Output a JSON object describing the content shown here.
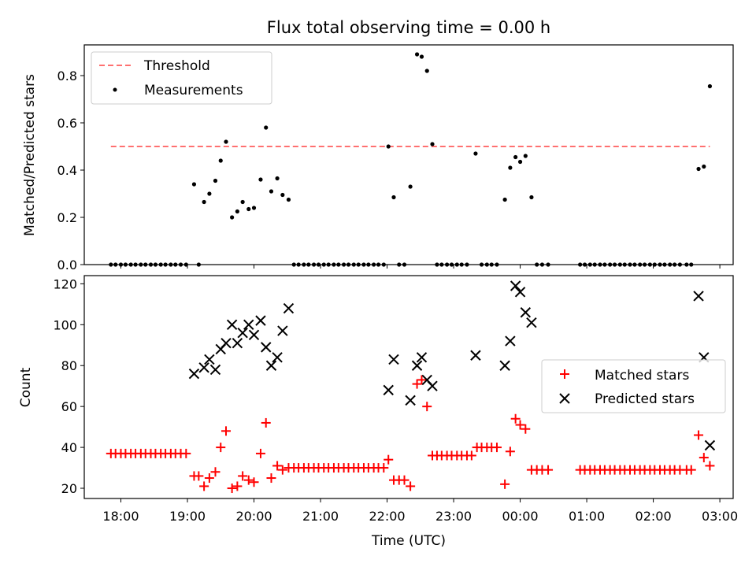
{
  "chart_data": [
    {
      "type": "scatter",
      "title": "Flux total observing time = 0.00 h",
      "ylabel": "Matched/Predicted stars",
      "xlabel": "",
      "x_unit": "hours UTC from 18:00",
      "xlim": [
        -0.55,
        9.2
      ],
      "ylim": [
        0,
        0.93
      ],
      "yticks": [
        0.0,
        0.2,
        0.4,
        0.6,
        0.8
      ],
      "ytick_labels": [
        "0.0",
        "0.2",
        "0.4",
        "0.6",
        "0.8"
      ],
      "xticks": [
        0,
        1,
        2,
        3,
        4,
        5,
        6,
        7,
        8,
        9
      ],
      "legend_position": "top-left",
      "threshold": {
        "name": "Threshold",
        "y": 0.5,
        "x_range": [
          -0.15,
          8.85
        ],
        "color": "#ff7070"
      },
      "series": [
        {
          "name": "Measurements",
          "color": "#000000",
          "points": [
            [
              -0.15,
              0
            ],
            [
              -0.08,
              0
            ],
            [
              0.0,
              0
            ],
            [
              0.07,
              0
            ],
            [
              0.15,
              0
            ],
            [
              0.22,
              0
            ],
            [
              0.3,
              0
            ],
            [
              0.37,
              0
            ],
            [
              0.45,
              0
            ],
            [
              0.52,
              0
            ],
            [
              0.6,
              0
            ],
            [
              0.67,
              0
            ],
            [
              0.75,
              0
            ],
            [
              0.82,
              0
            ],
            [
              0.9,
              0
            ],
            [
              0.98,
              0
            ],
            [
              1.1,
              0.34
            ],
            [
              1.17,
              0
            ],
            [
              1.25,
              0.265
            ],
            [
              1.33,
              0.3
            ],
            [
              1.42,
              0.355
            ],
            [
              1.5,
              0.44
            ],
            [
              1.58,
              0.52
            ],
            [
              1.67,
              0.2
            ],
            [
              1.75,
              0.225
            ],
            [
              1.83,
              0.265
            ],
            [
              1.92,
              0.235
            ],
            [
              2.0,
              0.24
            ],
            [
              2.1,
              0.36
            ],
            [
              2.18,
              0.58
            ],
            [
              2.26,
              0.31
            ],
            [
              2.35,
              0.365
            ],
            [
              2.43,
              0.295
            ],
            [
              2.52,
              0.275
            ],
            [
              2.6,
              0
            ],
            [
              2.67,
              0
            ],
            [
              2.75,
              0
            ],
            [
              2.82,
              0
            ],
            [
              2.9,
              0
            ],
            [
              2.97,
              0
            ],
            [
              3.05,
              0
            ],
            [
              3.12,
              0
            ],
            [
              3.2,
              0
            ],
            [
              3.27,
              0
            ],
            [
              3.35,
              0
            ],
            [
              3.42,
              0
            ],
            [
              3.5,
              0
            ],
            [
              3.57,
              0
            ],
            [
              3.65,
              0
            ],
            [
              3.72,
              0
            ],
            [
              3.8,
              0
            ],
            [
              3.87,
              0
            ],
            [
              3.95,
              0
            ],
            [
              4.02,
              0.5
            ],
            [
              4.1,
              0.285
            ],
            [
              4.18,
              0
            ],
            [
              4.26,
              0
            ],
            [
              4.35,
              0.33
            ],
            [
              4.45,
              0.89
            ],
            [
              4.52,
              0.88
            ],
            [
              4.6,
              0.82
            ],
            [
              4.68,
              0.51
            ],
            [
              4.75,
              0
            ],
            [
              4.82,
              0
            ],
            [
              4.9,
              0
            ],
            [
              4.97,
              0
            ],
            [
              5.05,
              0
            ],
            [
              5.12,
              0
            ],
            [
              5.2,
              0
            ],
            [
              5.33,
              0.47
            ],
            [
              5.42,
              0
            ],
            [
              5.5,
              0
            ],
            [
              5.57,
              0
            ],
            [
              5.65,
              0
            ],
            [
              5.77,
              0.275
            ],
            [
              5.85,
              0.41
            ],
            [
              5.93,
              0.455
            ],
            [
              6.0,
              0.435
            ],
            [
              6.08,
              0.46
            ],
            [
              6.17,
              0.285
            ],
            [
              6.25,
              0
            ],
            [
              6.33,
              0
            ],
            [
              6.42,
              0
            ],
            [
              6.9,
              0
            ],
            [
              6.97,
              0
            ],
            [
              7.05,
              0
            ],
            [
              7.12,
              0
            ],
            [
              7.2,
              0
            ],
            [
              7.27,
              0
            ],
            [
              7.35,
              0
            ],
            [
              7.42,
              0
            ],
            [
              7.5,
              0
            ],
            [
              7.57,
              0
            ],
            [
              7.65,
              0
            ],
            [
              7.72,
              0
            ],
            [
              7.8,
              0
            ],
            [
              7.87,
              0
            ],
            [
              7.95,
              0
            ],
            [
              8.02,
              0
            ],
            [
              8.1,
              0
            ],
            [
              8.17,
              0
            ],
            [
              8.25,
              0
            ],
            [
              8.32,
              0
            ],
            [
              8.4,
              0
            ],
            [
              8.5,
              0
            ],
            [
              8.57,
              0
            ],
            [
              8.68,
              0.405
            ],
            [
              8.76,
              0.415
            ],
            [
              8.85,
              0.755
            ]
          ]
        }
      ]
    },
    {
      "type": "scatter",
      "title": "",
      "ylabel": "Count",
      "xlabel": "Time (UTC)",
      "x_unit": "hours UTC from 18:00",
      "xlim": [
        -0.55,
        9.2
      ],
      "ylim": [
        15,
        124
      ],
      "yticks": [
        20,
        40,
        60,
        80,
        100,
        120
      ],
      "ytick_labels": [
        "20",
        "40",
        "60",
        "80",
        "100",
        "120"
      ],
      "xticks": [
        0,
        1,
        2,
        3,
        4,
        5,
        6,
        7,
        8,
        9
      ],
      "xtick_labels": [
        "18:00",
        "19:00",
        "20:00",
        "21:00",
        "22:00",
        "23:00",
        "00:00",
        "01:00",
        "02:00",
        "03:00"
      ],
      "legend_position": "center-right",
      "series": [
        {
          "name": "Matched stars",
          "color": "#ff0000",
          "marker": "plus",
          "points": [
            [
              -0.15,
              37
            ],
            [
              -0.08,
              37
            ],
            [
              0.0,
              37
            ],
            [
              0.07,
              37
            ],
            [
              0.15,
              37
            ],
            [
              0.22,
              37
            ],
            [
              0.3,
              37
            ],
            [
              0.37,
              37
            ],
            [
              0.45,
              37
            ],
            [
              0.52,
              37
            ],
            [
              0.6,
              37
            ],
            [
              0.67,
              37
            ],
            [
              0.75,
              37
            ],
            [
              0.82,
              37
            ],
            [
              0.9,
              37
            ],
            [
              0.98,
              37
            ],
            [
              1.1,
              26
            ],
            [
              1.17,
              26
            ],
            [
              1.25,
              21
            ],
            [
              1.33,
              25
            ],
            [
              1.42,
              28
            ],
            [
              1.5,
              40
            ],
            [
              1.58,
              48
            ],
            [
              1.67,
              20
            ],
            [
              1.75,
              21
            ],
            [
              1.83,
              26
            ],
            [
              1.92,
              24
            ],
            [
              2.0,
              23
            ],
            [
              2.1,
              37
            ],
            [
              2.18,
              52
            ],
            [
              2.26,
              25
            ],
            [
              2.35,
              31
            ],
            [
              2.43,
              29
            ],
            [
              2.52,
              30
            ],
            [
              2.6,
              30
            ],
            [
              2.67,
              30
            ],
            [
              2.75,
              30
            ],
            [
              2.82,
              30
            ],
            [
              2.9,
              30
            ],
            [
              2.97,
              30
            ],
            [
              3.05,
              30
            ],
            [
              3.12,
              30
            ],
            [
              3.2,
              30
            ],
            [
              3.27,
              30
            ],
            [
              3.35,
              30
            ],
            [
              3.42,
              30
            ],
            [
              3.5,
              30
            ],
            [
              3.57,
              30
            ],
            [
              3.65,
              30
            ],
            [
              3.72,
              30
            ],
            [
              3.8,
              30
            ],
            [
              3.87,
              30
            ],
            [
              3.95,
              30
            ],
            [
              4.02,
              34
            ],
            [
              4.1,
              24
            ],
            [
              4.18,
              24
            ],
            [
              4.26,
              24
            ],
            [
              4.35,
              21
            ],
            [
              4.45,
              71
            ],
            [
              4.52,
              73
            ],
            [
              4.6,
              60
            ],
            [
              4.68,
              36
            ],
            [
              4.75,
              36
            ],
            [
              4.82,
              36
            ],
            [
              4.9,
              36
            ],
            [
              4.97,
              36
            ],
            [
              5.05,
              36
            ],
            [
              5.12,
              36
            ],
            [
              5.2,
              36
            ],
            [
              5.27,
              36
            ],
            [
              5.35,
              40
            ],
            [
              5.42,
              40
            ],
            [
              5.5,
              40
            ],
            [
              5.57,
              40
            ],
            [
              5.65,
              40
            ],
            [
              5.77,
              22
            ],
            [
              5.85,
              38
            ],
            [
              5.93,
              54
            ],
            [
              6.0,
              51
            ],
            [
              6.08,
              49
            ],
            [
              6.17,
              29
            ],
            [
              6.25,
              29
            ],
            [
              6.33,
              29
            ],
            [
              6.42,
              29
            ],
            [
              6.9,
              29
            ],
            [
              6.97,
              29
            ],
            [
              7.05,
              29
            ],
            [
              7.12,
              29
            ],
            [
              7.2,
              29
            ],
            [
              7.27,
              29
            ],
            [
              7.35,
              29
            ],
            [
              7.42,
              29
            ],
            [
              7.5,
              29
            ],
            [
              7.57,
              29
            ],
            [
              7.65,
              29
            ],
            [
              7.72,
              29
            ],
            [
              7.8,
              29
            ],
            [
              7.87,
              29
            ],
            [
              7.95,
              29
            ],
            [
              8.02,
              29
            ],
            [
              8.1,
              29
            ],
            [
              8.17,
              29
            ],
            [
              8.25,
              29
            ],
            [
              8.32,
              29
            ],
            [
              8.4,
              29
            ],
            [
              8.5,
              29
            ],
            [
              8.57,
              29
            ],
            [
              8.68,
              46
            ],
            [
              8.76,
              35
            ],
            [
              8.85,
              31
            ]
          ]
        },
        {
          "name": "Predicted stars",
          "color": "#000000",
          "marker": "x",
          "points": [
            [
              1.1,
              76
            ],
            [
              1.25,
              79
            ],
            [
              1.33,
              83
            ],
            [
              1.42,
              78
            ],
            [
              1.5,
              88
            ],
            [
              1.58,
              91
            ],
            [
              1.67,
              100
            ],
            [
              1.75,
              91
            ],
            [
              1.83,
              96
            ],
            [
              1.92,
              100
            ],
            [
              2.0,
              95
            ],
            [
              2.1,
              102
            ],
            [
              2.18,
              89
            ],
            [
              2.26,
              80
            ],
            [
              2.35,
              84
            ],
            [
              2.43,
              97
            ],
            [
              2.52,
              108
            ],
            [
              4.02,
              68
            ],
            [
              4.1,
              83
            ],
            [
              4.35,
              63
            ],
            [
              4.45,
              80
            ],
            [
              4.52,
              84
            ],
            [
              4.6,
              73
            ],
            [
              4.68,
              70
            ],
            [
              5.33,
              85
            ],
            [
              5.77,
              80
            ],
            [
              5.85,
              92
            ],
            [
              5.93,
              119
            ],
            [
              6.0,
              116
            ],
            [
              6.08,
              106
            ],
            [
              6.17,
              101
            ],
            [
              8.68,
              114
            ],
            [
              8.76,
              84
            ],
            [
              8.85,
              41
            ]
          ]
        }
      ]
    }
  ]
}
